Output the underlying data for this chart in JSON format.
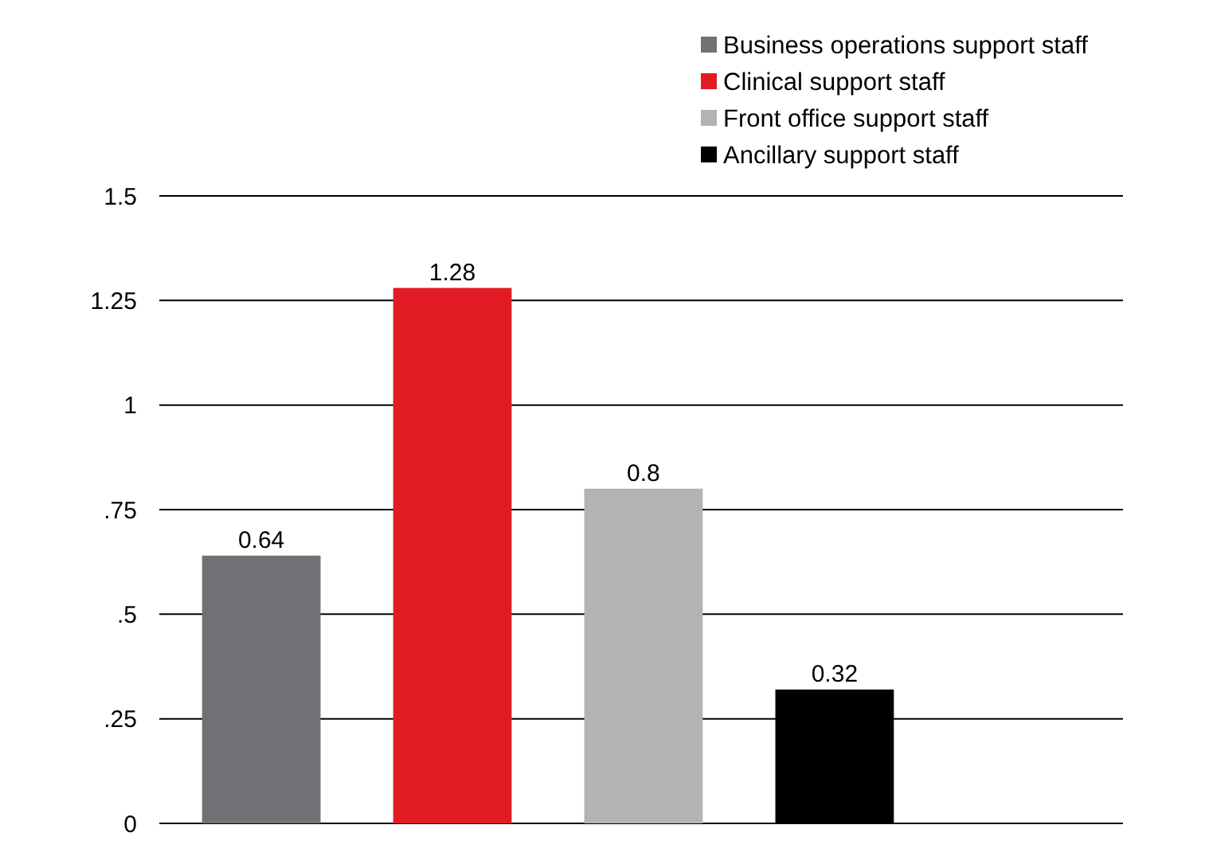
{
  "chart_data": {
    "type": "bar",
    "categories": [
      null
    ],
    "series": [
      {
        "name": "Business operations support staff",
        "color": "#707075",
        "values": [
          0.64
        ]
      },
      {
        "name": "Clinical support staff",
        "color": "#e01b24",
        "values": [
          1.28
        ]
      },
      {
        "name": "Front office support staff",
        "color": "#b3b3b6",
        "values": [
          0.8
        ]
      },
      {
        "name": "Ancillary support staff",
        "color": "#000000",
        "values": [
          0.32
        ]
      }
    ],
    "ylim": [
      0,
      1.5
    ],
    "yticks": [
      0,
      {
        "value": 0.25,
        "label": ".25"
      },
      {
        "value": 0.5,
        "label": ".5"
      },
      {
        "value": 0.75,
        "label": ".75"
      },
      1,
      1.25,
      1.5
    ],
    "grid": "y",
    "legend": "top right",
    "data_labels": true
  }
}
